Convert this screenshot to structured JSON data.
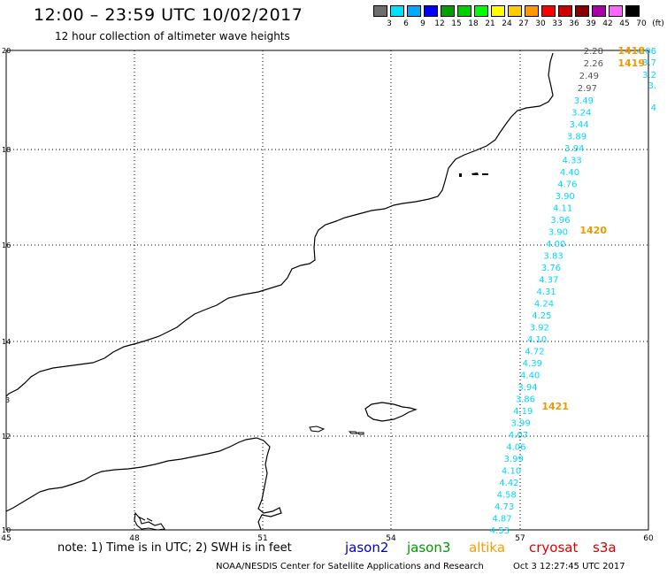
{
  "header": {
    "title": "12:00 – 23:59 UTC 10/02/2017",
    "subtitle": "12 hour collection of altimeter wave heights"
  },
  "scale": {
    "labels": [
      "3",
      "6",
      "9",
      "12",
      "15",
      "18",
      "21",
      "24",
      "27",
      "30",
      "33",
      "36",
      "39",
      "42",
      "45",
      "70",
      "(ft)"
    ],
    "colors": [
      "#6e6e6e",
      "#00e0ff",
      "#00aaff",
      "#0000ff",
      "#00a000",
      "#00d000",
      "#00ff00",
      "#ffff00",
      "#ffcc00",
      "#ff9900",
      "#ff0000",
      "#cc0000",
      "#880000",
      "#aa00aa",
      "#ff66ff",
      "#000000"
    ]
  },
  "axes": {
    "x_ticks": [
      "45",
      "48",
      "51",
      "54",
      "57",
      "60"
    ],
    "y_ticks": [
      "20",
      "18",
      "16",
      "14",
      "12",
      "10"
    ]
  },
  "tracks": {
    "upper_right": [
      "4.06",
      "3.7",
      "3.2",
      "3.",
      "4"
    ],
    "gray": [
      "2.28",
      "2.26",
      "2.49",
      "2.97"
    ],
    "main": [
      "3.49",
      "3.24",
      "3.44",
      "3.89",
      "3.94",
      "4.33",
      "4.40",
      "4.76",
      "3.90",
      "4.11",
      "3.96",
      "3.90",
      "4.00",
      "3.83",
      "3.76",
      "4.37",
      "4.31",
      "4.24",
      "4.25",
      "3.92",
      "4.10",
      "4.72",
      "4.39",
      "4.40",
      "3.94",
      "3.86",
      "4.19",
      "3.99",
      "4.07",
      "4.06",
      "3.99",
      "4.10",
      "4.42",
      "4.58",
      "4.73",
      "4.87",
      "4.53"
    ],
    "time_labels": [
      "1418",
      "1419",
      "1420",
      "1421"
    ]
  },
  "legend": {
    "note": "note:  1) Time is in UTC;  2) SWH is in feet",
    "satellites": [
      {
        "name": "jason2",
        "color": "#0000cc"
      },
      {
        "name": "jason3",
        "color": "#009900"
      },
      {
        "name": "altika",
        "color": "#ff9900"
      },
      {
        "name": "cryosat",
        "color": "#dd0000"
      },
      {
        "name": "s3a",
        "color": "#cc0000"
      }
    ]
  },
  "footer": {
    "credit": "NOAA/NESDIS Center for Satellite Applications and Research",
    "timestamp": "Oct  3 12:27:45 UTC 2017"
  }
}
